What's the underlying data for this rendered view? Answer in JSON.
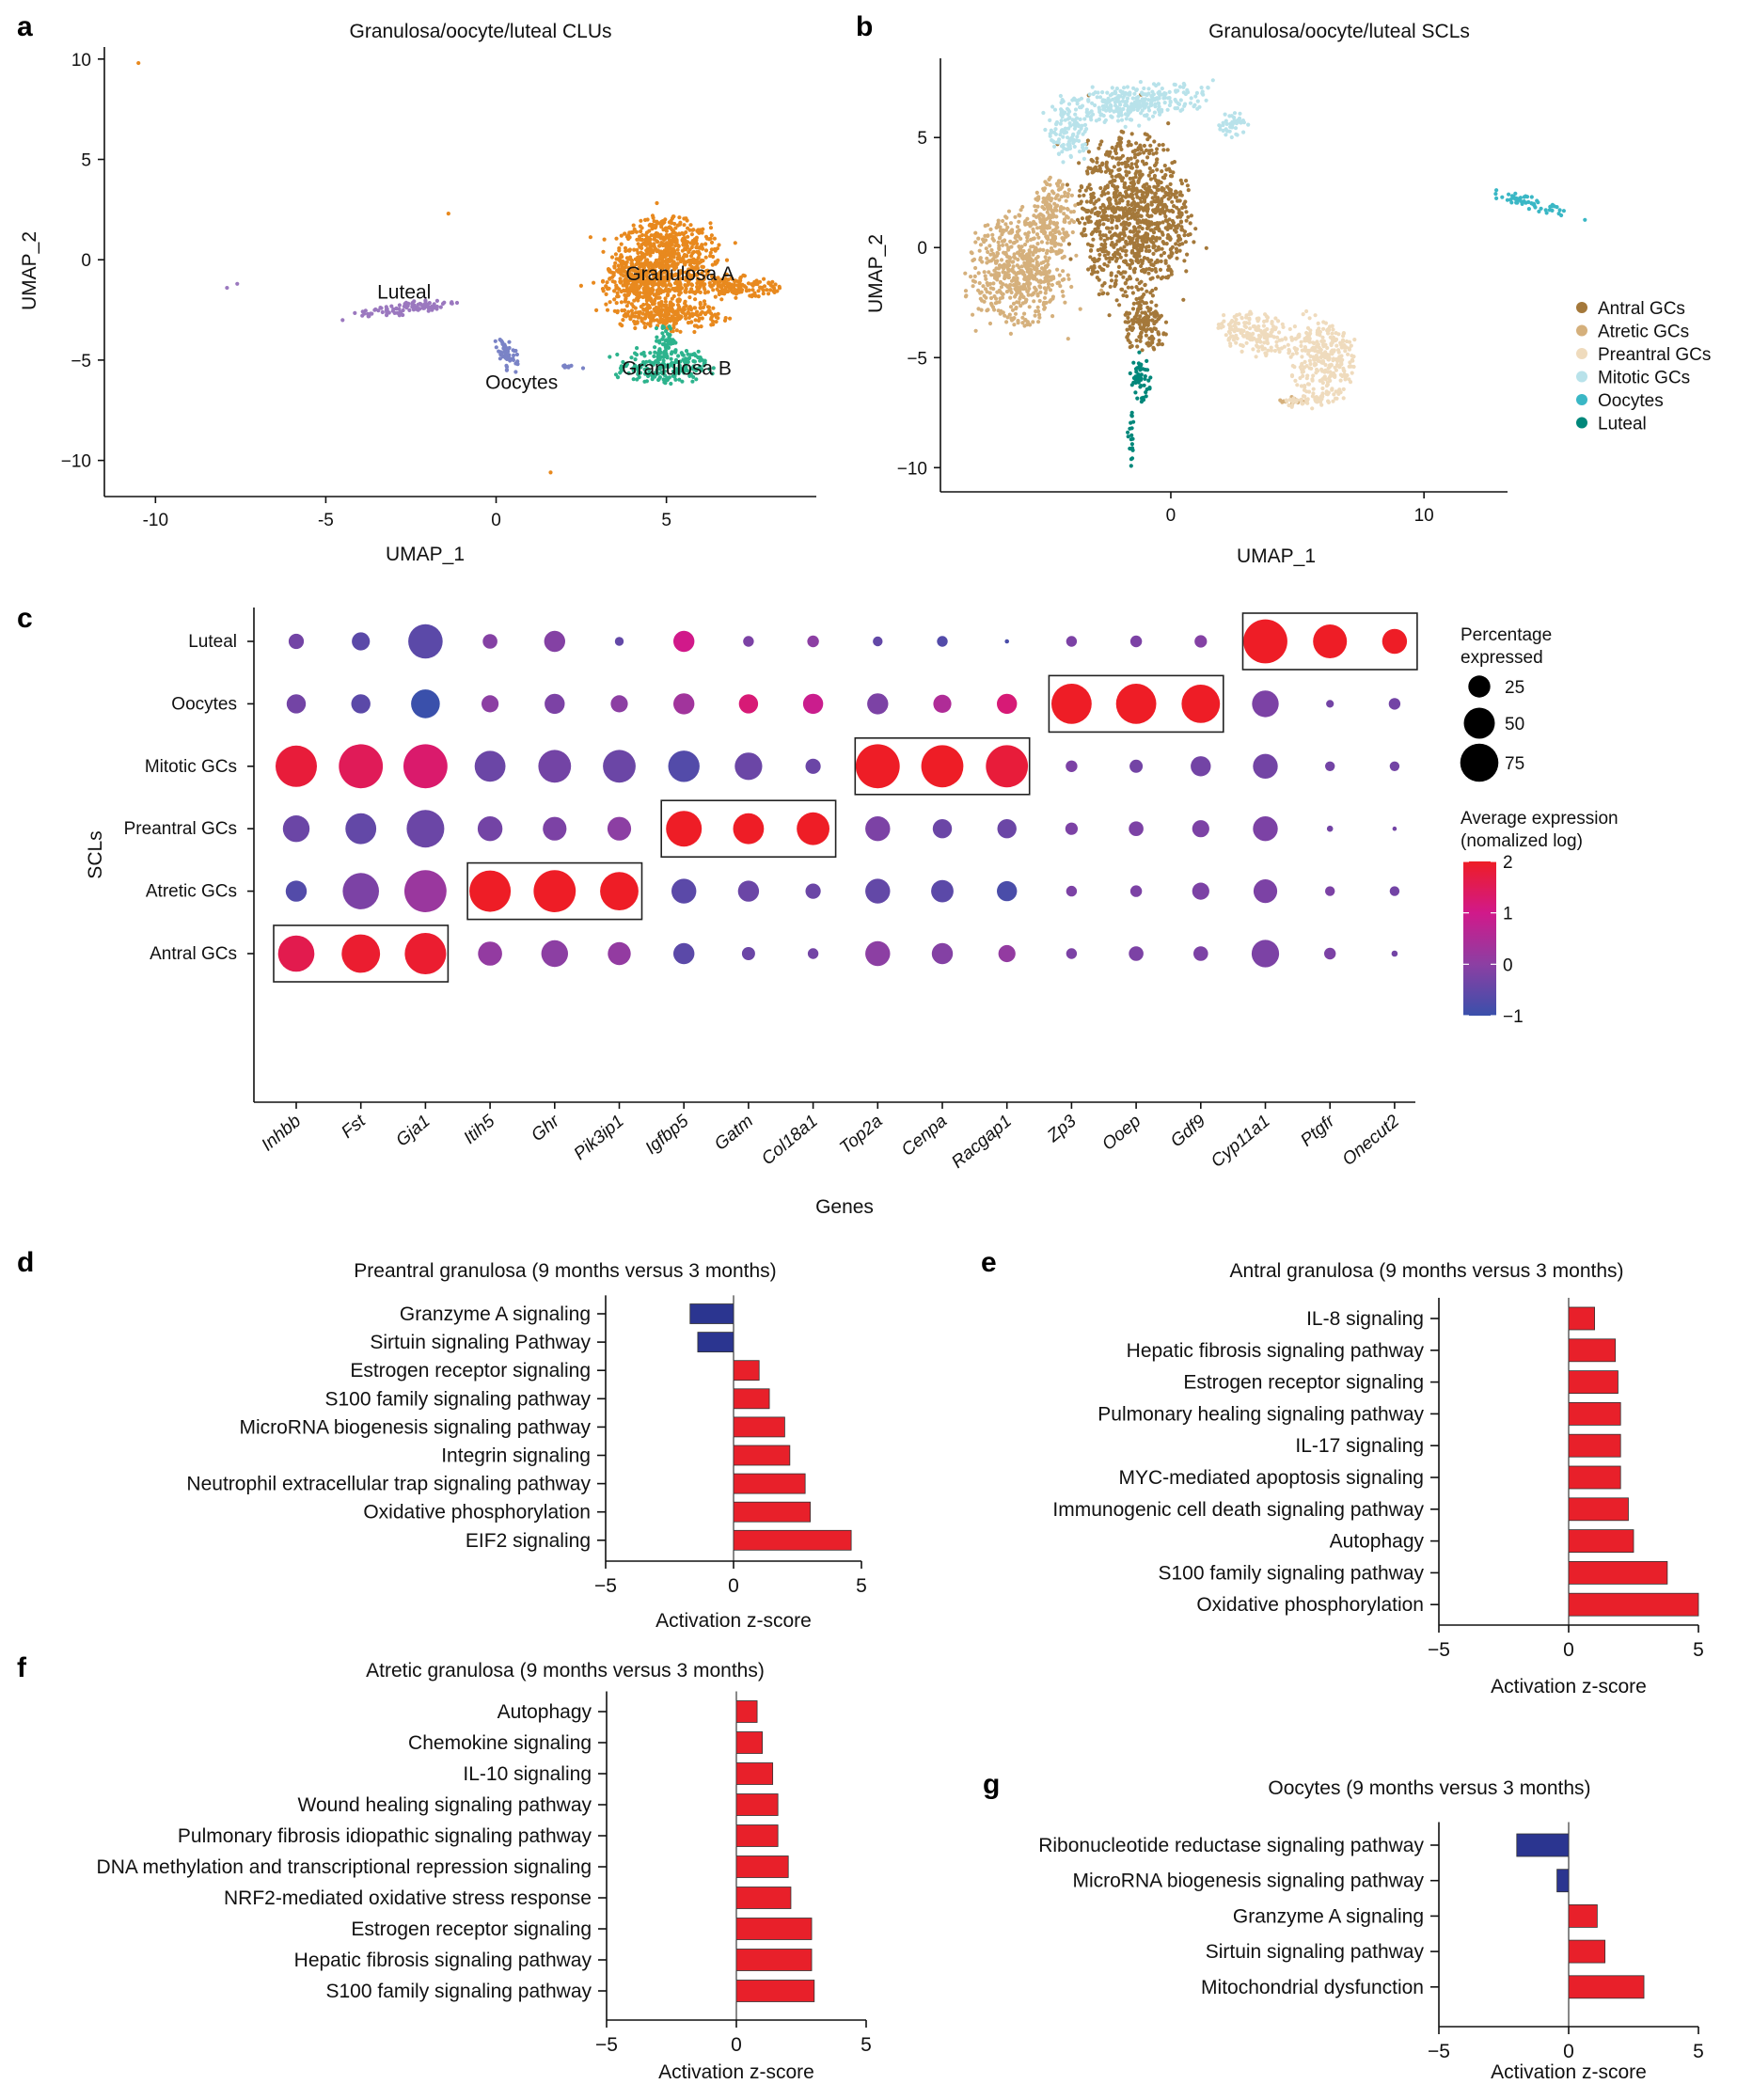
{
  "panel_letters": {
    "a": "a",
    "b": "b",
    "c": "c",
    "d": "d",
    "e": "e",
    "f": "f",
    "g": "g"
  },
  "chart_data": [
    {
      "id": "a",
      "type": "scatter",
      "title": "Granulosa/oocyte/luteal CLUs",
      "xlabel": "UMAP_1",
      "ylabel": "UMAP_2",
      "xlim": [
        -11.5,
        9.4
      ],
      "ylim": [
        -11.8,
        10.6
      ],
      "xticks": [
        -10,
        -5,
        0,
        5
      ],
      "yticks": [
        10,
        5,
        0,
        -5,
        -10
      ],
      "grid": false,
      "legend": "none",
      "clusters": [
        {
          "name": "Granulosa A",
          "color": "#e8891e",
          "regions": [
            [
              5,
              0.2,
              1.6,
              2.0,
              0
            ],
            [
              6.8,
              -1.3,
              1.6,
              0.6,
              -5
            ],
            [
              4.3,
              -1.4,
              1.2,
              1.6,
              0
            ],
            [
              5.2,
              -2.8,
              1.4,
              0.8,
              0
            ]
          ],
          "outliers": [
            [
              -10.5,
              9.8
            ],
            [
              -1.4,
              2.3
            ],
            [
              1.6,
              -10.6
            ]
          ]
        },
        {
          "name": "Granulosa B",
          "color": "#2db38d",
          "regions": [
            [
              4.9,
              -5.3,
              1.3,
              0.9,
              0
            ],
            [
              5,
              -4,
              0.3,
              0.8,
              0
            ]
          ],
          "outliers": []
        },
        {
          "name": "Luteal",
          "color": "#9b78bf",
          "regions": [
            [
              -2.6,
              -2.4,
              1.5,
              0.33,
              12
            ]
          ],
          "outliers": [
            [
              -7.9,
              -1.4
            ],
            [
              -7.6,
              -1.2
            ]
          ]
        },
        {
          "name": "Oocytes",
          "color": "#7a83c6",
          "regions": [
            [
              0.35,
              -4.7,
              0.3,
              0.9,
              12
            ],
            [
              2.1,
              -5.3,
              0.4,
              0.12,
              0
            ]
          ],
          "outliers": []
        }
      ]
    },
    {
      "id": "b",
      "type": "scatter",
      "title": "Granulosa/oocyte/luteal SCLs",
      "xlabel": "UMAP_1",
      "ylabel": "UMAP_2",
      "xlim": [
        -9.1,
        13.3
      ],
      "ylim": [
        -11.1,
        8.6
      ],
      "xticks": [
        0,
        10
      ],
      "yticks": [
        5,
        0,
        -5,
        -10
      ],
      "grid": false,
      "legend": "right",
      "clusters": [
        {
          "name": "Antral GCs",
          "color": "#a4783a",
          "regions": [
            [
              -1.5,
              1.5,
              2.2,
              3.8,
              0
            ],
            [
              -1,
              -3.6,
              0.9,
              1.3,
              0
            ]
          ],
          "outliers": []
        },
        {
          "name": "Atretic GCs",
          "color": "#d5b07c",
          "regions": [
            [
              -6,
              -1,
              1.9,
              2.6,
              0
            ],
            [
              -4.6,
              1.6,
              0.8,
              1.6,
              0
            ],
            [
              4.8,
              -7,
              0.6,
              0.22,
              0
            ]
          ],
          "outliers": []
        },
        {
          "name": "Preantral GCs",
          "color": "#efdbbd",
          "regions": [
            [
              3.5,
              -3.9,
              1.8,
              0.9,
              -15
            ],
            [
              6,
              -5.2,
              1.3,
              1.9,
              0
            ],
            [
              5.2,
              -7,
              0.9,
              0.3,
              0
            ]
          ],
          "outliers": []
        },
        {
          "name": "Mitotic GCs",
          "color": "#b8e2ea",
          "regions": [
            [
              -1.5,
              6.6,
              3.3,
              0.8,
              8
            ],
            [
              -4,
              5,
              0.8,
              1,
              0
            ],
            [
              2.4,
              5.6,
              0.6,
              0.6,
              0
            ]
          ],
          "outliers": []
        },
        {
          "name": "Oocytes",
          "color": "#3ab7c5",
          "regions": [
            [
              14.2,
              2.0,
              1.6,
              0.3,
              -20
            ]
          ],
          "outliers": []
        },
        {
          "name": "Luteal",
          "color": "#00877a",
          "regions": [
            [
              -1.2,
              -6,
              0.4,
              1.1,
              0
            ],
            [
              -1.55,
              -8.8,
              0.13,
              1.3,
              0
            ]
          ],
          "outliers": []
        }
      ]
    },
    {
      "id": "c",
      "type": "dot",
      "xlabel": "Genes",
      "ylabel": "SCLs",
      "rows": [
        "Luteal",
        "Oocytes",
        "Mitotic GCs",
        "Preantral GCs",
        "Atretic GCs",
        "Antral GCs"
      ],
      "genes": [
        "Inhbb",
        "Fst",
        "Gja1",
        "Itih5",
        "Ghr",
        "Pik3ip1",
        "Igfbp5",
        "Gatm",
        "Col18a1",
        "Top2a",
        "Cenpa",
        "Racgap1",
        "Zp3",
        "Ooep",
        "Gdf9",
        "Cyp11a1",
        "Ptgfr",
        "Onecut2"
      ],
      "percentage_expressed": [
        [
          12,
          17,
          61,
          11,
          23,
          4,
          23,
          6,
          7,
          5,
          6,
          1,
          6,
          7,
          8,
          100,
          59,
          32
        ],
        [
          19,
          19,
          43,
          15,
          21,
          15,
          23,
          19,
          21,
          23,
          17,
          21,
          84,
          84,
          76,
          37,
          3,
          7
        ],
        [
          88,
          100,
          100,
          49,
          55,
          55,
          51,
          39,
          12,
          100,
          92,
          92,
          7,
          9,
          21,
          32,
          5,
          5
        ],
        [
          37,
          49,
          73,
          32,
          29,
          29,
          66,
          49,
          55,
          32,
          19,
          19,
          8,
          11,
          15,
          32,
          2,
          1
        ],
        [
          23,
          68,
          92,
          88,
          92,
          76,
          32,
          23,
          12,
          32,
          26,
          21,
          6,
          7,
          15,
          29,
          5,
          5
        ],
        [
          68,
          76,
          88,
          30,
          37,
          27,
          23,
          9,
          6,
          32,
          23,
          15,
          6,
          11,
          11,
          39,
          7,
          2
        ]
      ],
      "average_expression": [
        [
          -0.3,
          -0.6,
          -0.6,
          -0.1,
          -0.1,
          -0.5,
          1.0,
          -0.2,
          0,
          -0.5,
          -0.7,
          -0.8,
          -0.2,
          -0.2,
          -0.1,
          2,
          2,
          2
        ],
        [
          -0.3,
          -0.6,
          -1,
          0,
          -0.2,
          0,
          0.3,
          1.2,
          0.9,
          -0.2,
          0.5,
          1.2,
          2,
          2,
          2,
          -0.2,
          -0.3,
          -0.3
        ],
        [
          1.8,
          1.5,
          1.3,
          -0.4,
          -0.3,
          -0.4,
          -0.7,
          -0.4,
          -0.4,
          2,
          2,
          1.8,
          -0.2,
          -0.3,
          -0.3,
          -0.3,
          -0.3,
          -0.3
        ],
        [
          -0.4,
          -0.5,
          -0.4,
          -0.3,
          -0.2,
          0,
          2,
          2,
          2,
          -0.2,
          -0.4,
          -0.4,
          -0.2,
          -0.2,
          -0.2,
          -0.2,
          -0.3,
          -0.3
        ],
        [
          -0.7,
          -0.2,
          0.2,
          2,
          2,
          2,
          -0.6,
          -0.4,
          -0.4,
          -0.5,
          -0.6,
          -0.8,
          -0.2,
          -0.2,
          -0.2,
          -0.2,
          -0.2,
          -0.3
        ],
        [
          1.6,
          1.9,
          1.9,
          0.1,
          0,
          0.1,
          -0.6,
          -0.4,
          -0.3,
          0,
          -0.1,
          0.1,
          -0.2,
          -0.2,
          -0.2,
          -0.2,
          -0.2,
          -0.3
        ]
      ],
      "highlight_boxes": [
        {
          "row": "Luteal",
          "genes": [
            "Cyp11a1",
            "Ptgfr",
            "Onecut2"
          ]
        },
        {
          "row": "Oocytes",
          "genes": [
            "Zp3",
            "Ooep",
            "Gdf9"
          ]
        },
        {
          "row": "Mitotic GCs",
          "genes": [
            "Top2a",
            "Cenpa",
            "Racgap1"
          ]
        },
        {
          "row": "Preantral GCs",
          "genes": [
            "Igfbp5",
            "Gatm",
            "Col18a1"
          ]
        },
        {
          "row": "Atretic GCs",
          "genes": [
            "Itih5",
            "Ghr",
            "Pik3ip1"
          ]
        },
        {
          "row": "Antral GCs",
          "genes": [
            "Inhbb",
            "Fst",
            "Gja1"
          ]
        }
      ],
      "size_legend": {
        "title_line1": "Percentage",
        "title_line2": "expressed",
        "values": [
          25,
          50,
          75
        ]
      },
      "color_legend": {
        "title_line1": "Average expression",
        "title_line2": "(nomalized log)",
        "min": -1,
        "max": 2,
        "ticks": [
          2,
          1,
          0,
          -1
        ],
        "stops": [
          [
            "-1",
            "#3a50ab"
          ],
          [
            "0",
            "#8c3fa3"
          ],
          [
            "1",
            "#d1198a"
          ],
          [
            "2",
            "#ee1d26"
          ]
        ]
      }
    },
    {
      "id": "d",
      "type": "bar",
      "orientation": "horizontal",
      "title": "Preantral granulosa (9 months versus 3 months)",
      "categories": [
        "Granzyme A signaling",
        "Sirtuin signaling Pathway",
        "Estrogen receptor signaling",
        "S100 family signaling pathway",
        "MicroRNA biogenesis signaling pathway",
        "Integrin signaling",
        "Neutrophil extracellular trap signaling pathway",
        "Oxidative phosphorylation",
        "EIF2 signaling"
      ],
      "values": [
        -1.7,
        -1.4,
        1.0,
        1.4,
        2.0,
        2.2,
        2.8,
        3.0,
        4.6
      ],
      "xlim": [
        -5,
        5
      ],
      "xticks": [
        "−5",
        "0",
        "5"
      ],
      "xlabel": "Activation z-score",
      "colors": {
        "positive": "#e8202a",
        "negative": "#2b3590"
      }
    },
    {
      "id": "e",
      "type": "bar",
      "orientation": "horizontal",
      "title": "Antral granulosa (9 months versus 3 months)",
      "categories": [
        "IL-8 signaling",
        "Hepatic fibrosis signaling pathway",
        "Estrogen receptor signaling",
        "Pulmonary healing signaling pathway",
        "IL-17 signaling",
        "MYC-mediated apoptosis signaling",
        "Immunogenic cell death signaling pathway",
        "Autophagy",
        "S100 family signaling pathway",
        "Oxidative phosphorylation"
      ],
      "values": [
        1.0,
        1.8,
        1.9,
        2.0,
        2.0,
        2.0,
        2.3,
        2.5,
        3.8,
        5.0
      ],
      "xlim": [
        -5,
        5
      ],
      "xticks": [
        "−5",
        "0",
        "5"
      ],
      "xlabel": "Activation z-score",
      "colors": {
        "positive": "#e8202a",
        "negative": "#2b3590"
      }
    },
    {
      "id": "f",
      "type": "bar",
      "orientation": "horizontal",
      "title": "Atretic granulosa (9 months versus 3 months)",
      "categories": [
        "Autophagy",
        "Chemokine signaling",
        "IL-10 signaling",
        "Wound healing signaling pathway",
        "Pulmonary fibrosis idiopathic signaling pathway",
        "DNA methylation and transcriptional repression signaling",
        "NRF2-mediated oxidative stress response",
        "Estrogen receptor signaling",
        "Hepatic fibrosis signaling pathway",
        "S100 family signaling pathway"
      ],
      "values": [
        0.8,
        1.0,
        1.4,
        1.6,
        1.6,
        2.0,
        2.1,
        2.9,
        2.9,
        3.0
      ],
      "xlim": [
        -5,
        5
      ],
      "xticks": [
        "−5",
        "0",
        "5"
      ],
      "xlabel": "Activation z-score",
      "colors": {
        "positive": "#e8202a",
        "negative": "#2b3590"
      }
    },
    {
      "id": "g",
      "type": "bar",
      "orientation": "horizontal",
      "title": "Oocytes (9 months versus 3 months)",
      "categories": [
        "Ribonucleotide reductase signaling pathway",
        "MicroRNA biogenesis signaling pathway",
        "Granzyme A signaling",
        "Sirtuin signaling pathway",
        "Mitochondrial dysfunction"
      ],
      "values": [
        -2.0,
        -0.45,
        1.1,
        1.4,
        2.9
      ],
      "xlim": [
        -5,
        5
      ],
      "xticks": [
        "−5",
        "0",
        "5"
      ],
      "xlabel": "Activation z-score",
      "colors": {
        "positive": "#e8202a",
        "negative": "#2b3590"
      }
    }
  ]
}
